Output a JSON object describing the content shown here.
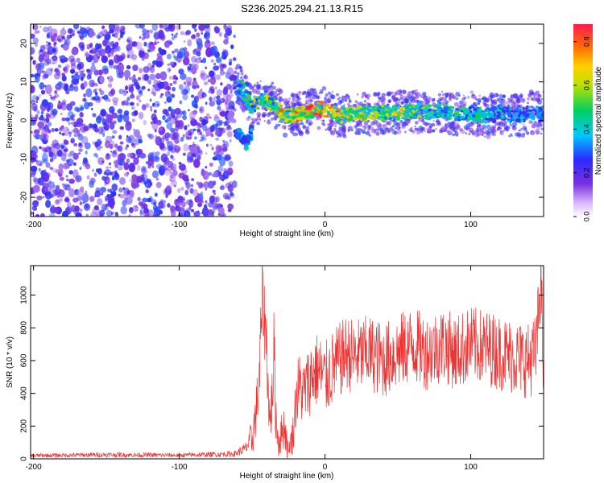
{
  "title": "S236.2025.294.21.13.R15",
  "chart_data": [
    {
      "type": "heatmap",
      "name": "spectrogram",
      "xlabel": "Height of straight line (km)",
      "ylabel": "Frequency (Hz)",
      "xlim": [
        -202,
        150
      ],
      "ylim": [
        -25,
        25
      ],
      "xticks": [
        -200,
        -100,
        0,
        100
      ],
      "yticks": [
        20,
        10,
        0,
        -10,
        -20
      ],
      "colorbar": {
        "label": "Normalized spectral amplitude",
        "range": [
          0,
          0.88
        ],
        "ticks": [
          "0.0",
          "0.2",
          "0.4",
          "0.6",
          "0.8"
        ],
        "tick_values": [
          0.0,
          0.2,
          0.4,
          0.6,
          0.8
        ]
      },
      "noise_region_x": [
        -202,
        -62
      ],
      "noise_region_amplitude": [
        0.1,
        0.3
      ],
      "ridge": {
        "x": [
          -62,
          -58,
          -54,
          -50,
          -45,
          -40,
          -35,
          -30,
          -25,
          -20,
          -15,
          -10,
          -5,
          0,
          10,
          20,
          30,
          40,
          50,
          60,
          70,
          80,
          90,
          100,
          110,
          120,
          130,
          140,
          150
        ],
        "freq": [
          8,
          9,
          6,
          3,
          5,
          5,
          4,
          2,
          1,
          1.5,
          2,
          2.5,
          3,
          3,
          1,
          2,
          1.5,
          2,
          2,
          2.5,
          2,
          2.5,
          1.5,
          2,
          1,
          2,
          1,
          2,
          2
        ],
        "amplitude": [
          0.4,
          0.45,
          0.5,
          0.55,
          0.5,
          0.6,
          0.55,
          0.75,
          0.6,
          0.8,
          0.75,
          0.85,
          0.8,
          0.75,
          0.7,
          0.65,
          0.7,
          0.6,
          0.65,
          0.6,
          0.55,
          0.5,
          0.5,
          0.45,
          0.45,
          0.4,
          0.4,
          0.35,
          0.35
        ]
      },
      "secondary_branch": {
        "x": [
          -62,
          -58,
          -54,
          -50
        ],
        "freq": [
          -3,
          -4,
          -6,
          -3
        ],
        "amplitude": [
          0.3,
          0.35,
          0.4,
          0.35
        ]
      }
    },
    {
      "type": "line",
      "name": "snr",
      "xlabel": "Height of straight line (km)",
      "ylabel": "SNR (10 * v/v)",
      "xlim": [
        -202,
        150
      ],
      "ylim": [
        0,
        1180
      ],
      "xticks": [
        -200,
        -100,
        0,
        100
      ],
      "yticks": [
        0,
        200,
        400,
        600,
        800,
        1000
      ],
      "color": "#ee3333",
      "series": [
        {
          "name": "snr",
          "x": [
            -202,
            -150,
            -100,
            -62,
            -55,
            -50,
            -47,
            -45,
            -43,
            -40,
            -38,
            -36,
            -35,
            -34,
            -32,
            -30,
            -28,
            -25,
            -22,
            -20,
            -18,
            -15,
            -12,
            -10,
            -5,
            0,
            5,
            10,
            15,
            20,
            30,
            40,
            50,
            60,
            70,
            80,
            90,
            100,
            110,
            120,
            130,
            140,
            145,
            148,
            150
          ],
          "y": [
            20,
            25,
            22,
            30,
            60,
            120,
            300,
            500,
            1000,
            700,
            200,
            400,
            700,
            300,
            100,
            150,
            200,
            50,
            150,
            350,
            450,
            400,
            450,
            500,
            550,
            480,
            550,
            600,
            650,
            620,
            650,
            600,
            650,
            700,
            650,
            700,
            650,
            700,
            680,
            650,
            620,
            600,
            650,
            1130,
            500
          ],
          "noise_amplitude": 180
        }
      ]
    }
  ]
}
